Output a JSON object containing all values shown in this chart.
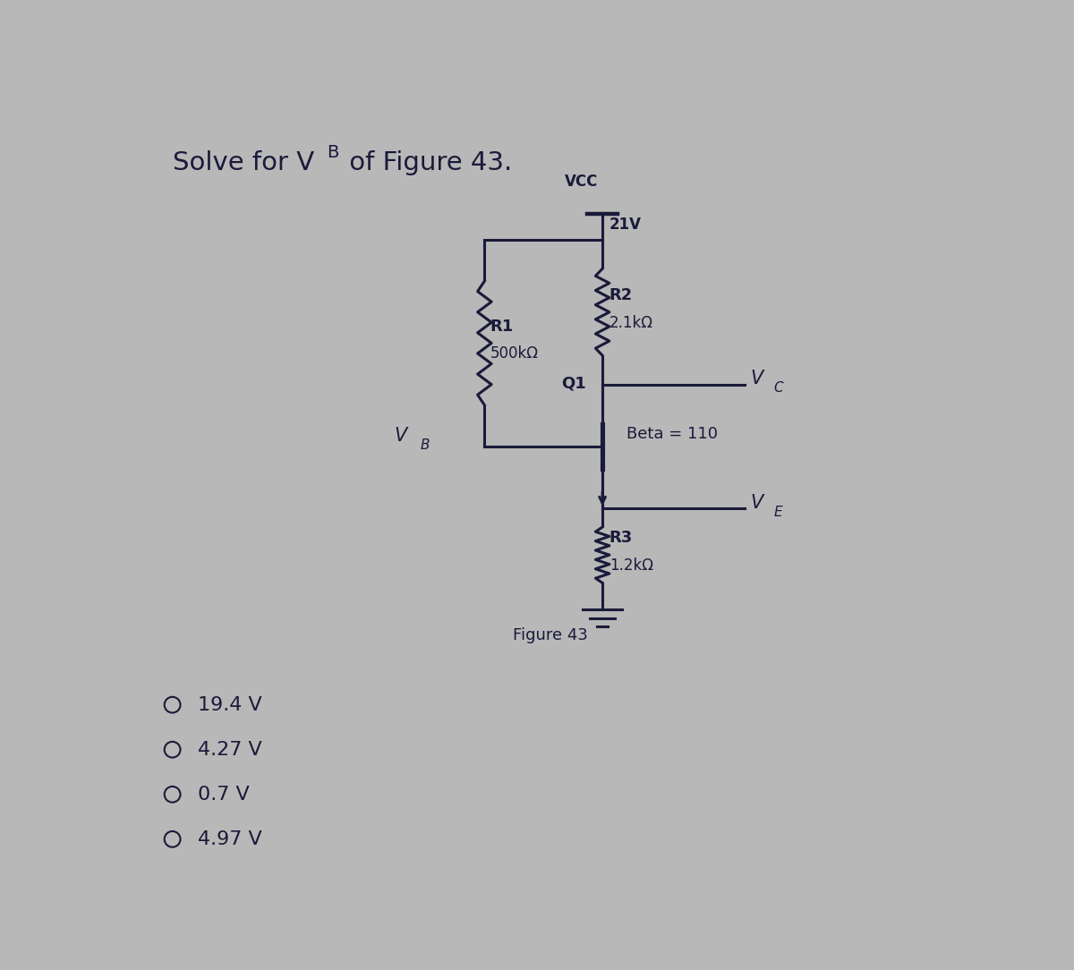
{
  "title_parts": [
    "Solve for V",
    "B",
    " of Figure 43."
  ],
  "bg_color": "#b8b8b8",
  "text_color": "#1a1a3a",
  "circuit_color": "#1a1a3a",
  "vcc_label": "VCC",
  "vcc_voltage": "21V",
  "r1_label": "R1",
  "r1_value": "500kΩ",
  "r2_label": "R2",
  "r2_value": "2.1kΩ",
  "r3_label": "R3",
  "r3_value": "1.2kΩ",
  "q1_label": "Q1",
  "beta_label": "Beta = 110",
  "vc_label": "V",
  "vc_sub": "C",
  "ve_label": "V",
  "ve_sub": "E",
  "vb_label": "V",
  "vb_sub": "B",
  "figure_label": "Figure 43",
  "options": [
    "19.4 V",
    "4.27 V",
    "0.7 V",
    "4.97 V"
  ]
}
